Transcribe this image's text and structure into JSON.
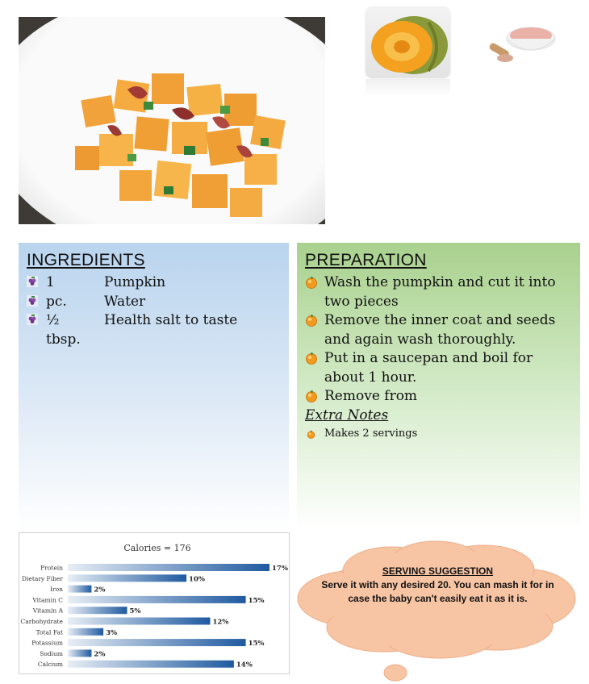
{
  "images": {
    "hero": "pumpkin-salad-bowl",
    "thumb1": "pumpkin-halves",
    "thumb2": "pink-salt-bowl"
  },
  "ingredients": {
    "title": "INGREDIENTS",
    "items": [
      {
        "qty": "1 pc.",
        "name": "Pumpkin"
      },
      {
        "qty": "",
        "name": "Water"
      },
      {
        "qty": "½ tbsp.",
        "name": "Health salt to taste"
      }
    ]
  },
  "preparation": {
    "title": "PREPARATION",
    "steps": [
      "Wash the pumpkin and cut it into two pieces",
      "Remove the inner coat and seeds and again wash thoroughly.",
      "Put in a saucepan and boil for about 1 hour.",
      "Remove from"
    ],
    "extra_title": "Extra Notes",
    "notes": [
      "Makes 2 servings"
    ]
  },
  "serving": {
    "title": "SERVING SUGGESTION",
    "text": "Serve it with any desired 20. You can mash it for in case the baby can't easily eat it as it is."
  },
  "colors": {
    "ingredients_panel": "#b9d4ee",
    "preparation_panel": "#a9d18e",
    "cloud": "#f7c4a4",
    "bar_dark": "#1f5aa0",
    "bar_light": "#e8eef5"
  },
  "chart_data": {
    "type": "bar",
    "orientation": "horizontal",
    "title": "Calories = 176",
    "categories": [
      "Protein",
      "Dietary Fiber",
      "Iron",
      "Vitamin C",
      "Vitamin A",
      "Carbohydrate",
      "Total Fat",
      "Potassium",
      "Sodium",
      "Calcium"
    ],
    "values": [
      17,
      10,
      2,
      15,
      5,
      12,
      3,
      15,
      2,
      14
    ],
    "value_labels": [
      "17%",
      "10%",
      "2%",
      "15%",
      "5%",
      "12%",
      "3%",
      "15%",
      "2%",
      "14%"
    ],
    "unit": "%",
    "xlim": [
      0,
      17
    ]
  }
}
